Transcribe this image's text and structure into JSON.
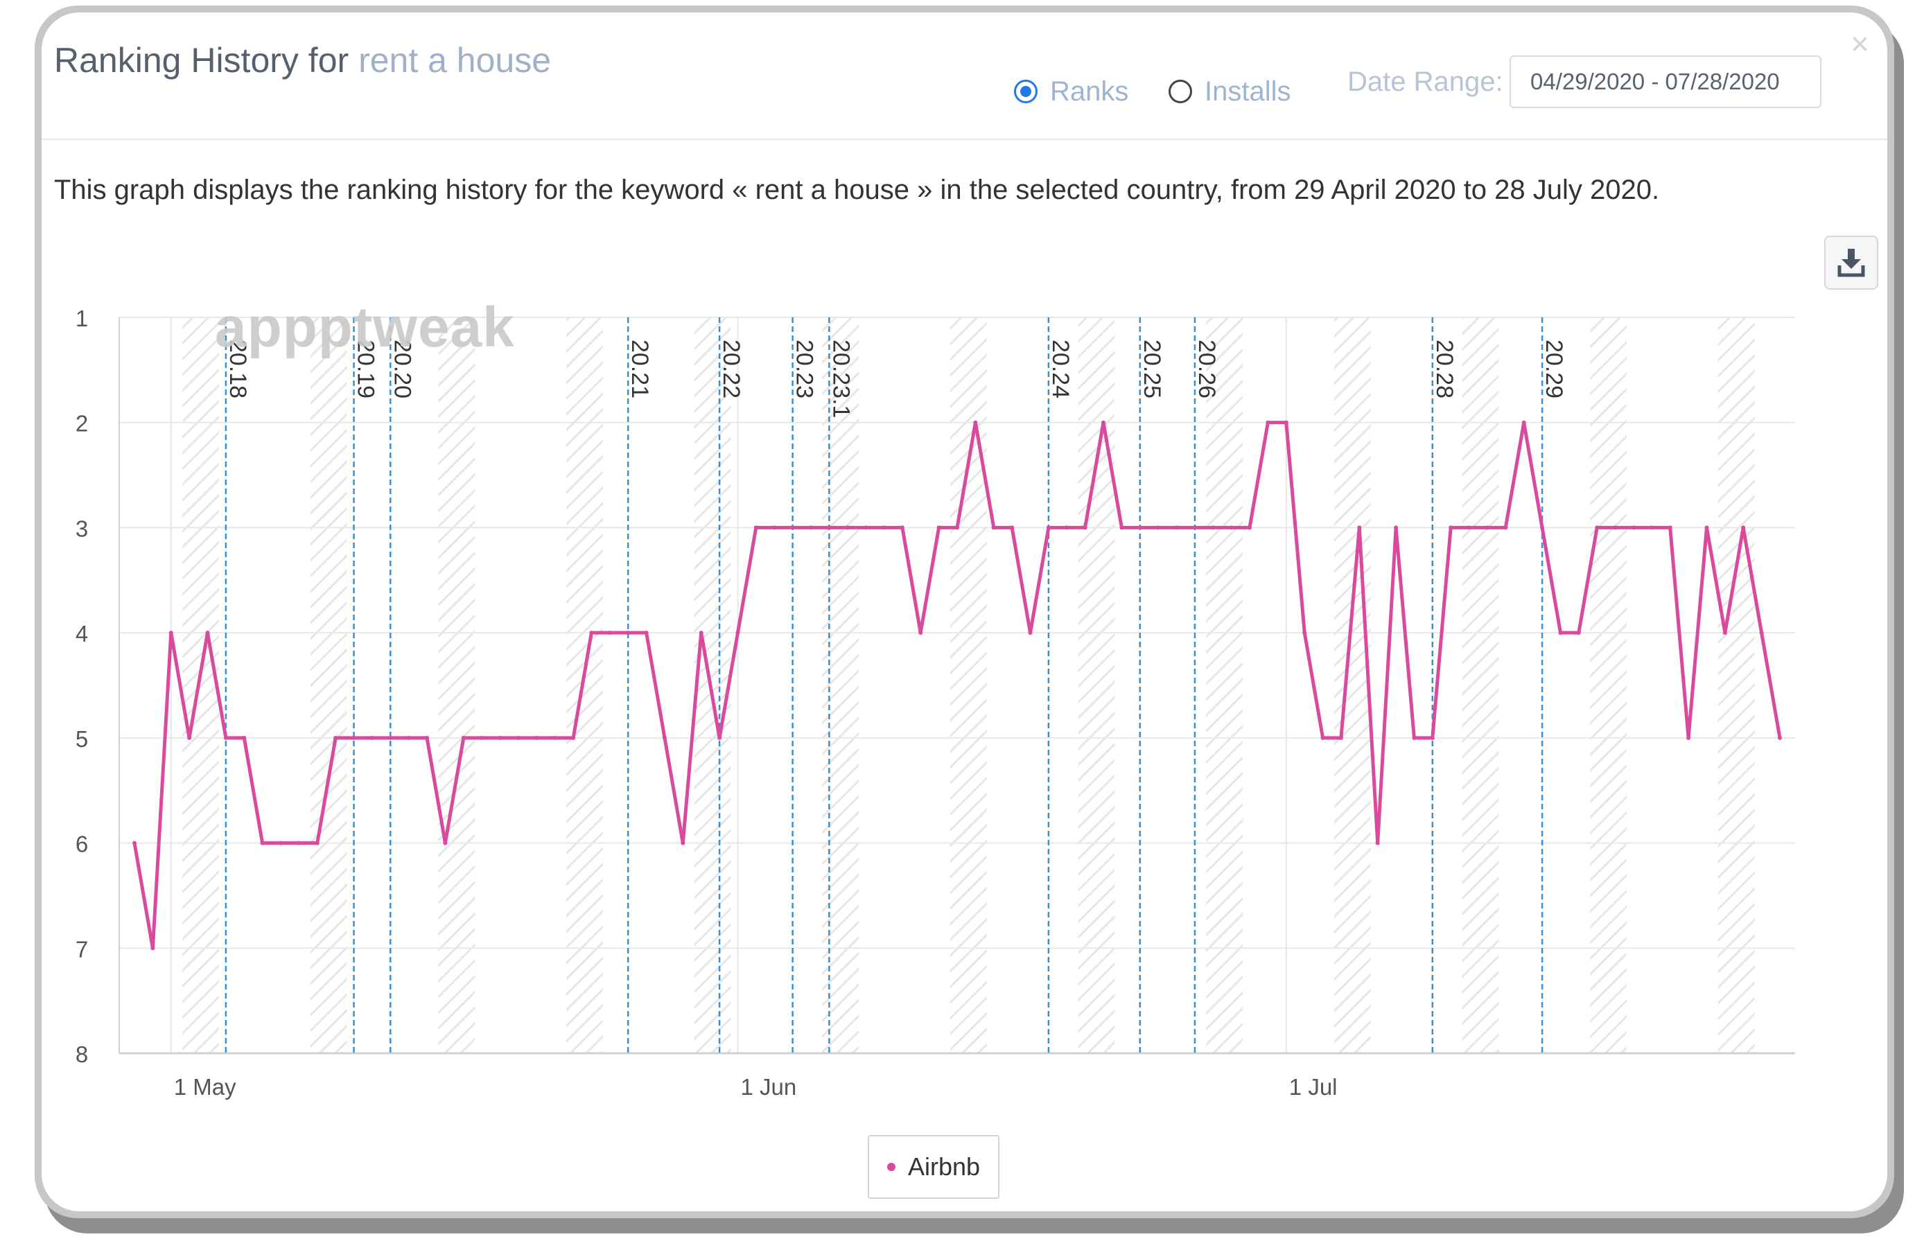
{
  "header": {
    "title_prefix": "Ranking History for",
    "keyword": "rent a house",
    "close_symbol": "×",
    "modes": [
      {
        "label": "Ranks",
        "selected": true
      },
      {
        "label": "Installs",
        "selected": false
      }
    ],
    "date_range_label": "Date Range:",
    "date_range_value": "04/29/2020 - 07/28/2020"
  },
  "description": "This graph displays the ranking history for the keyword « rent a house » in the selected country, from 29 April 2020 to 28 July 2020.",
  "watermark": "appptweak",
  "icons": {
    "download": "download-icon",
    "close": "close-icon"
  },
  "colors": {
    "series": "#d94a9c",
    "version_line": "#3a8fd0",
    "accent": "#1f7ae6"
  },
  "chart_data": {
    "type": "line",
    "x_start": "2020-04-29",
    "x_end": "2020-07-28",
    "xticks": [
      {
        "date": "2020-05-01",
        "label": "1 May"
      },
      {
        "date": "2020-06-01",
        "label": "1 Jun"
      },
      {
        "date": "2020-07-01",
        "label": "1 Jul"
      }
    ],
    "y_inverted": true,
    "ylim": [
      1,
      8
    ],
    "yticks": [
      1,
      2,
      3,
      4,
      5,
      6,
      7,
      8
    ],
    "grid": true,
    "legend_position": "bottom-center",
    "series": [
      {
        "name": "Airbnb",
        "x": [
          "2020-04-29",
          "2020-04-30",
          "2020-05-01",
          "2020-05-02",
          "2020-05-03",
          "2020-05-04",
          "2020-05-05",
          "2020-05-06",
          "2020-05-07",
          "2020-05-08",
          "2020-05-09",
          "2020-05-10",
          "2020-05-11",
          "2020-05-12",
          "2020-05-13",
          "2020-05-14",
          "2020-05-15",
          "2020-05-16",
          "2020-05-17",
          "2020-05-18",
          "2020-05-19",
          "2020-05-20",
          "2020-05-21",
          "2020-05-22",
          "2020-05-23",
          "2020-05-24",
          "2020-05-25",
          "2020-05-26",
          "2020-05-27",
          "2020-05-28",
          "2020-05-29",
          "2020-05-30",
          "2020-05-31",
          "2020-06-01",
          "2020-06-02",
          "2020-06-03",
          "2020-06-04",
          "2020-06-05",
          "2020-06-06",
          "2020-06-07",
          "2020-06-08",
          "2020-06-09",
          "2020-06-10",
          "2020-06-11",
          "2020-06-12",
          "2020-06-13",
          "2020-06-14",
          "2020-06-15",
          "2020-06-16",
          "2020-06-17",
          "2020-06-18",
          "2020-06-19",
          "2020-06-20",
          "2020-06-21",
          "2020-06-22",
          "2020-06-23",
          "2020-06-24",
          "2020-06-25",
          "2020-06-26",
          "2020-06-27",
          "2020-06-28",
          "2020-06-29",
          "2020-06-30",
          "2020-07-01",
          "2020-07-02",
          "2020-07-03",
          "2020-07-04",
          "2020-07-05",
          "2020-07-06",
          "2020-07-07",
          "2020-07-08",
          "2020-07-09",
          "2020-07-10",
          "2020-07-11",
          "2020-07-12",
          "2020-07-13",
          "2020-07-14",
          "2020-07-15",
          "2020-07-16",
          "2020-07-17",
          "2020-07-18",
          "2020-07-19",
          "2020-07-20",
          "2020-07-21",
          "2020-07-22",
          "2020-07-23",
          "2020-07-24",
          "2020-07-25",
          "2020-07-26",
          "2020-07-27",
          "2020-07-28"
        ],
        "values": [
          6,
          7,
          4,
          5,
          4,
          5,
          5,
          6,
          6,
          6,
          6,
          5,
          5,
          5,
          5,
          5,
          5,
          6,
          5,
          5,
          5,
          5,
          5,
          5,
          5,
          4,
          4,
          4,
          4,
          5,
          6,
          4,
          5,
          4,
          3,
          3,
          3,
          3,
          3,
          3,
          3,
          3,
          3,
          4,
          3,
          3,
          2,
          3,
          3,
          4,
          3,
          3,
          3,
          2,
          3,
          3,
          3,
          3,
          3,
          3,
          3,
          3,
          2,
          2,
          4,
          5,
          5,
          3,
          6,
          3,
          5,
          5,
          3,
          3,
          3,
          3,
          2,
          3,
          4,
          4,
          3,
          3,
          3,
          3,
          3,
          5,
          3,
          4,
          3,
          4,
          5
        ]
      }
    ],
    "version_markers": [
      {
        "date": "2020-05-04",
        "label": "20.18"
      },
      {
        "date": "2020-05-11",
        "label": "20.19"
      },
      {
        "date": "2020-05-13",
        "label": "20.20"
      },
      {
        "date": "2020-05-26",
        "label": "20.21"
      },
      {
        "date": "2020-05-31",
        "label": "20.22"
      },
      {
        "date": "2020-06-04",
        "label": "20.23"
      },
      {
        "date": "2020-06-06",
        "label": "20.23.1"
      },
      {
        "date": "2020-06-18",
        "label": "20.24"
      },
      {
        "date": "2020-06-23",
        "label": "20.25"
      },
      {
        "date": "2020-06-26",
        "label": "20.26"
      },
      {
        "date": "2020-07-09",
        "label": "20.28"
      },
      {
        "date": "2020-07-15",
        "label": "20.29"
      }
    ],
    "weekend_shading": true
  }
}
